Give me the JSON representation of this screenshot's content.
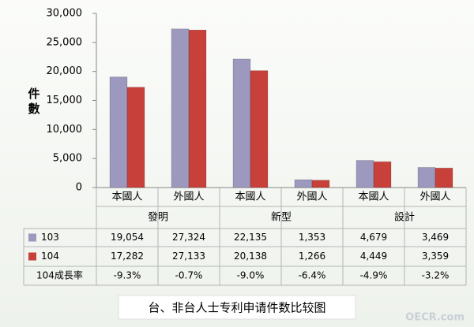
{
  "chart_data": {
    "type": "bar",
    "title": "台、非台人士专利申请件数比较图",
    "y_label": "件數",
    "watermark": "OECR.com",
    "groups": [
      "發明",
      "新型",
      "設計"
    ],
    "categories": [
      "本國人",
      "外國人",
      "本國人",
      "外國人",
      "本國人",
      "外國人"
    ],
    "series": [
      {
        "name": "103",
        "color": "#9d98bd",
        "values": [
          19054,
          27324,
          22135,
          1353,
          4679,
          3469
        ],
        "value_labels": [
          "19,054",
          "27,324",
          "22,135",
          "1,353",
          "4,679",
          "3,469"
        ]
      },
      {
        "name": "104",
        "color": "#c8403a",
        "values": [
          17282,
          27133,
          20138,
          1266,
          4449,
          3359
        ],
        "value_labels": [
          "17,282",
          "27,133",
          "20,138",
          "1,266",
          "4,449",
          "3,359"
        ]
      }
    ],
    "growth": {
      "name": "104成長率",
      "values": [
        -9.3,
        -0.7,
        -9.0,
        -6.4,
        -4.9,
        -3.2
      ],
      "value_labels": [
        "-9.3%",
        "-0.7%",
        "-9.0%",
        "-6.4%",
        "-4.9%",
        "-3.2%"
      ]
    },
    "ylim": [
      0,
      30000
    ],
    "yticks": [
      0,
      {
        "value": 5000,
        "label": "5,000"
      },
      {
        "value": 10000,
        "label": "10,000"
      },
      {
        "value": 15000,
        "label": "15,000"
      },
      {
        "value": 20000,
        "label": "20,000"
      },
      {
        "value": 25000,
        "label": "25,000"
      },
      {
        "value": 30000,
        "label": "30,000"
      }
    ],
    "grid": false
  }
}
